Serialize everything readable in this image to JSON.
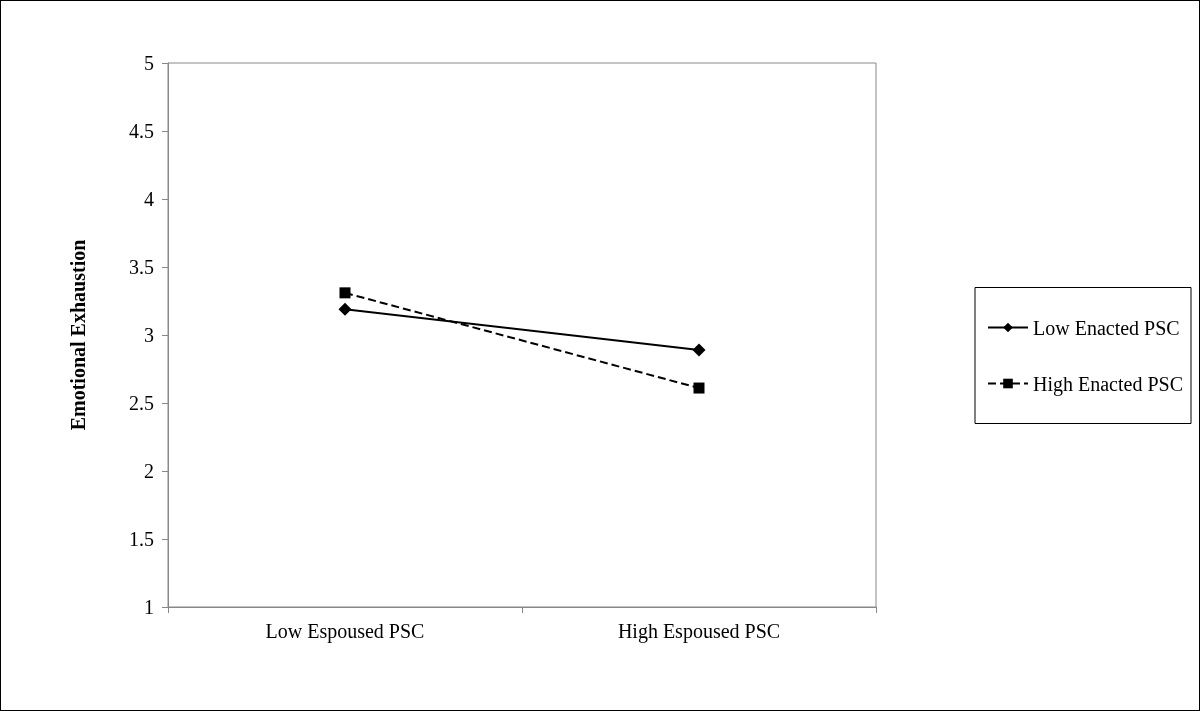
{
  "chart_data": {
    "type": "line",
    "ylabel": "Emotional Exhaustion",
    "categories": [
      "Low Espoused PSC",
      "High Espoused PSC"
    ],
    "series": [
      {
        "name": "Low Enacted PSC",
        "color": "#000000",
        "values": [
          3.19,
          2.89
        ],
        "marker": "diamond",
        "line_style": "solid"
      },
      {
        "name": "High Enacted PSC",
        "color": "#000000",
        "values": [
          3.31,
          2.61
        ],
        "marker": "square",
        "line_style": "dashed"
      }
    ],
    "ylim": [
      1,
      5
    ],
    "yticks": [
      1,
      1.5,
      2,
      2.5,
      3,
      3.5,
      4,
      4.5,
      5
    ],
    "grid": false,
    "legend": "right"
  }
}
